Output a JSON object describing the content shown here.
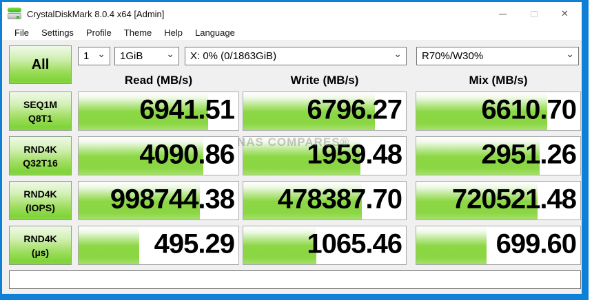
{
  "window": {
    "title": "CrystalDiskMark 8.0.4 x64 [Admin]",
    "icons": {
      "app": "disk-benchmark-icon",
      "minimize": "minimize-icon",
      "maximize": "maximize-icon",
      "close": "close-icon"
    },
    "close_glyph": "✕"
  },
  "menu": {
    "items": [
      "File",
      "Settings",
      "Profile",
      "Theme",
      "Help",
      "Language"
    ]
  },
  "controls": {
    "all_label": "All",
    "test_count": "1",
    "test_size": "1GiB",
    "target_drive": "X: 0% (0/1863GiB)",
    "mix_ratio": "R70%/W30%",
    "chevron_glyph": "⌄"
  },
  "columns": [
    "Read (MB/s)",
    "Write (MB/s)",
    "Mix (MB/s)"
  ],
  "rows": [
    {
      "label_line1": "SEQ1M",
      "label_line2": "Q8T1",
      "read": "6941.51",
      "write": "6796.27",
      "mix": "6610.70",
      "fills": [
        81,
        81,
        80
      ]
    },
    {
      "label_line1": "RND4K",
      "label_line2": "Q32T16",
      "read": "4090.86",
      "write": "1959.48",
      "mix": "2951.26",
      "fills": [
        78,
        72,
        75
      ]
    },
    {
      "label_line1": "RND4K",
      "label_line2": "(IOPS)",
      "read": "998744.38",
      "write": "478387.70",
      "mix": "720521.48",
      "fills": [
        76,
        73,
        74
      ]
    },
    {
      "label_line1": "RND4K",
      "label_line2": "(µs)",
      "read": "495.29",
      "write": "1065.46",
      "mix": "699.60",
      "fills": [
        38,
        45,
        43
      ]
    }
  ],
  "watermark": "NAS COMPARES®",
  "status_bar": {
    "text": ""
  },
  "colors": {
    "accent_blue_border": "#0e81d7",
    "bar_green": "#8cd745",
    "button_green": "#80d43a",
    "client_bg": "#f0f0f0"
  }
}
